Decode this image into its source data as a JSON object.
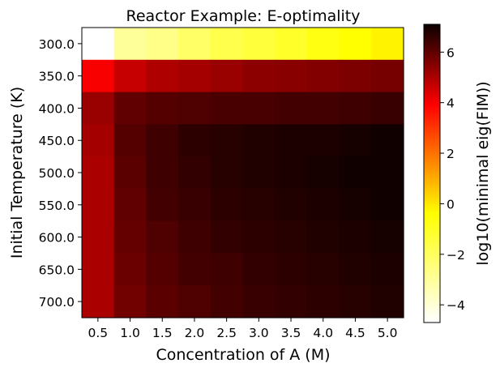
{
  "chart_data": {
    "type": "heatmap",
    "title": "Reactor Example: E-optimality",
    "xlabel": "Concentration of A (M)",
    "ylabel": "Initial Temperature (K)",
    "x_categories": [
      "0.5",
      "1.0",
      "1.5",
      "2.0",
      "2.5",
      "3.0",
      "3.5",
      "4.0",
      "4.5",
      "5.0"
    ],
    "y_categories": [
      "300.0",
      "350.0",
      "400.0",
      "450.0",
      "500.0",
      "550.0",
      "600.0",
      "650.0",
      "700.0"
    ],
    "colorbar": {
      "label": "log10(minimal eig(FIM))",
      "colormap": "hot_r",
      "range": [
        -4.7,
        7.1
      ],
      "ticks": [
        -4,
        -2,
        0,
        2,
        4,
        6
      ],
      "tick_labels": [
        "−4",
        "−2",
        "0",
        "2",
        "4",
        "6"
      ]
    },
    "values": [
      [
        -4.7,
        -3.5,
        -3.3,
        -2.9,
        -2.6,
        -2.4,
        -2.2,
        -1.9,
        -1.7,
        -1.5
      ],
      [
        2.9,
        3.8,
        4.2,
        4.4,
        4.6,
        4.8,
        4.9,
        5.0,
        5.1,
        5.2
      ],
      [
        4.6,
        5.6,
        5.8,
        5.9,
        6.0,
        6.0,
        6.1,
        6.1,
        6.2,
        6.3
      ],
      [
        4.4,
        5.8,
        6.2,
        6.5,
        6.6,
        6.7,
        6.8,
        6.8,
        6.9,
        7.0
      ],
      [
        4.3,
        5.7,
        6.2,
        6.4,
        6.6,
        6.7,
        6.8,
        6.9,
        7.0,
        7.0
      ],
      [
        4.3,
        5.6,
        6.1,
        6.3,
        6.5,
        6.6,
        6.7,
        6.8,
        6.9,
        7.0
      ],
      [
        4.3,
        5.5,
        5.9,
        6.2,
        6.4,
        6.5,
        6.6,
        6.7,
        6.8,
        6.9
      ],
      [
        4.3,
        5.4,
        5.8,
        6.1,
        6.2,
        6.4,
        6.5,
        6.6,
        6.7,
        6.8
      ],
      [
        4.3,
        5.3,
        5.7,
        5.9,
        6.1,
        6.3,
        6.4,
        6.5,
        6.6,
        6.7
      ]
    ]
  }
}
